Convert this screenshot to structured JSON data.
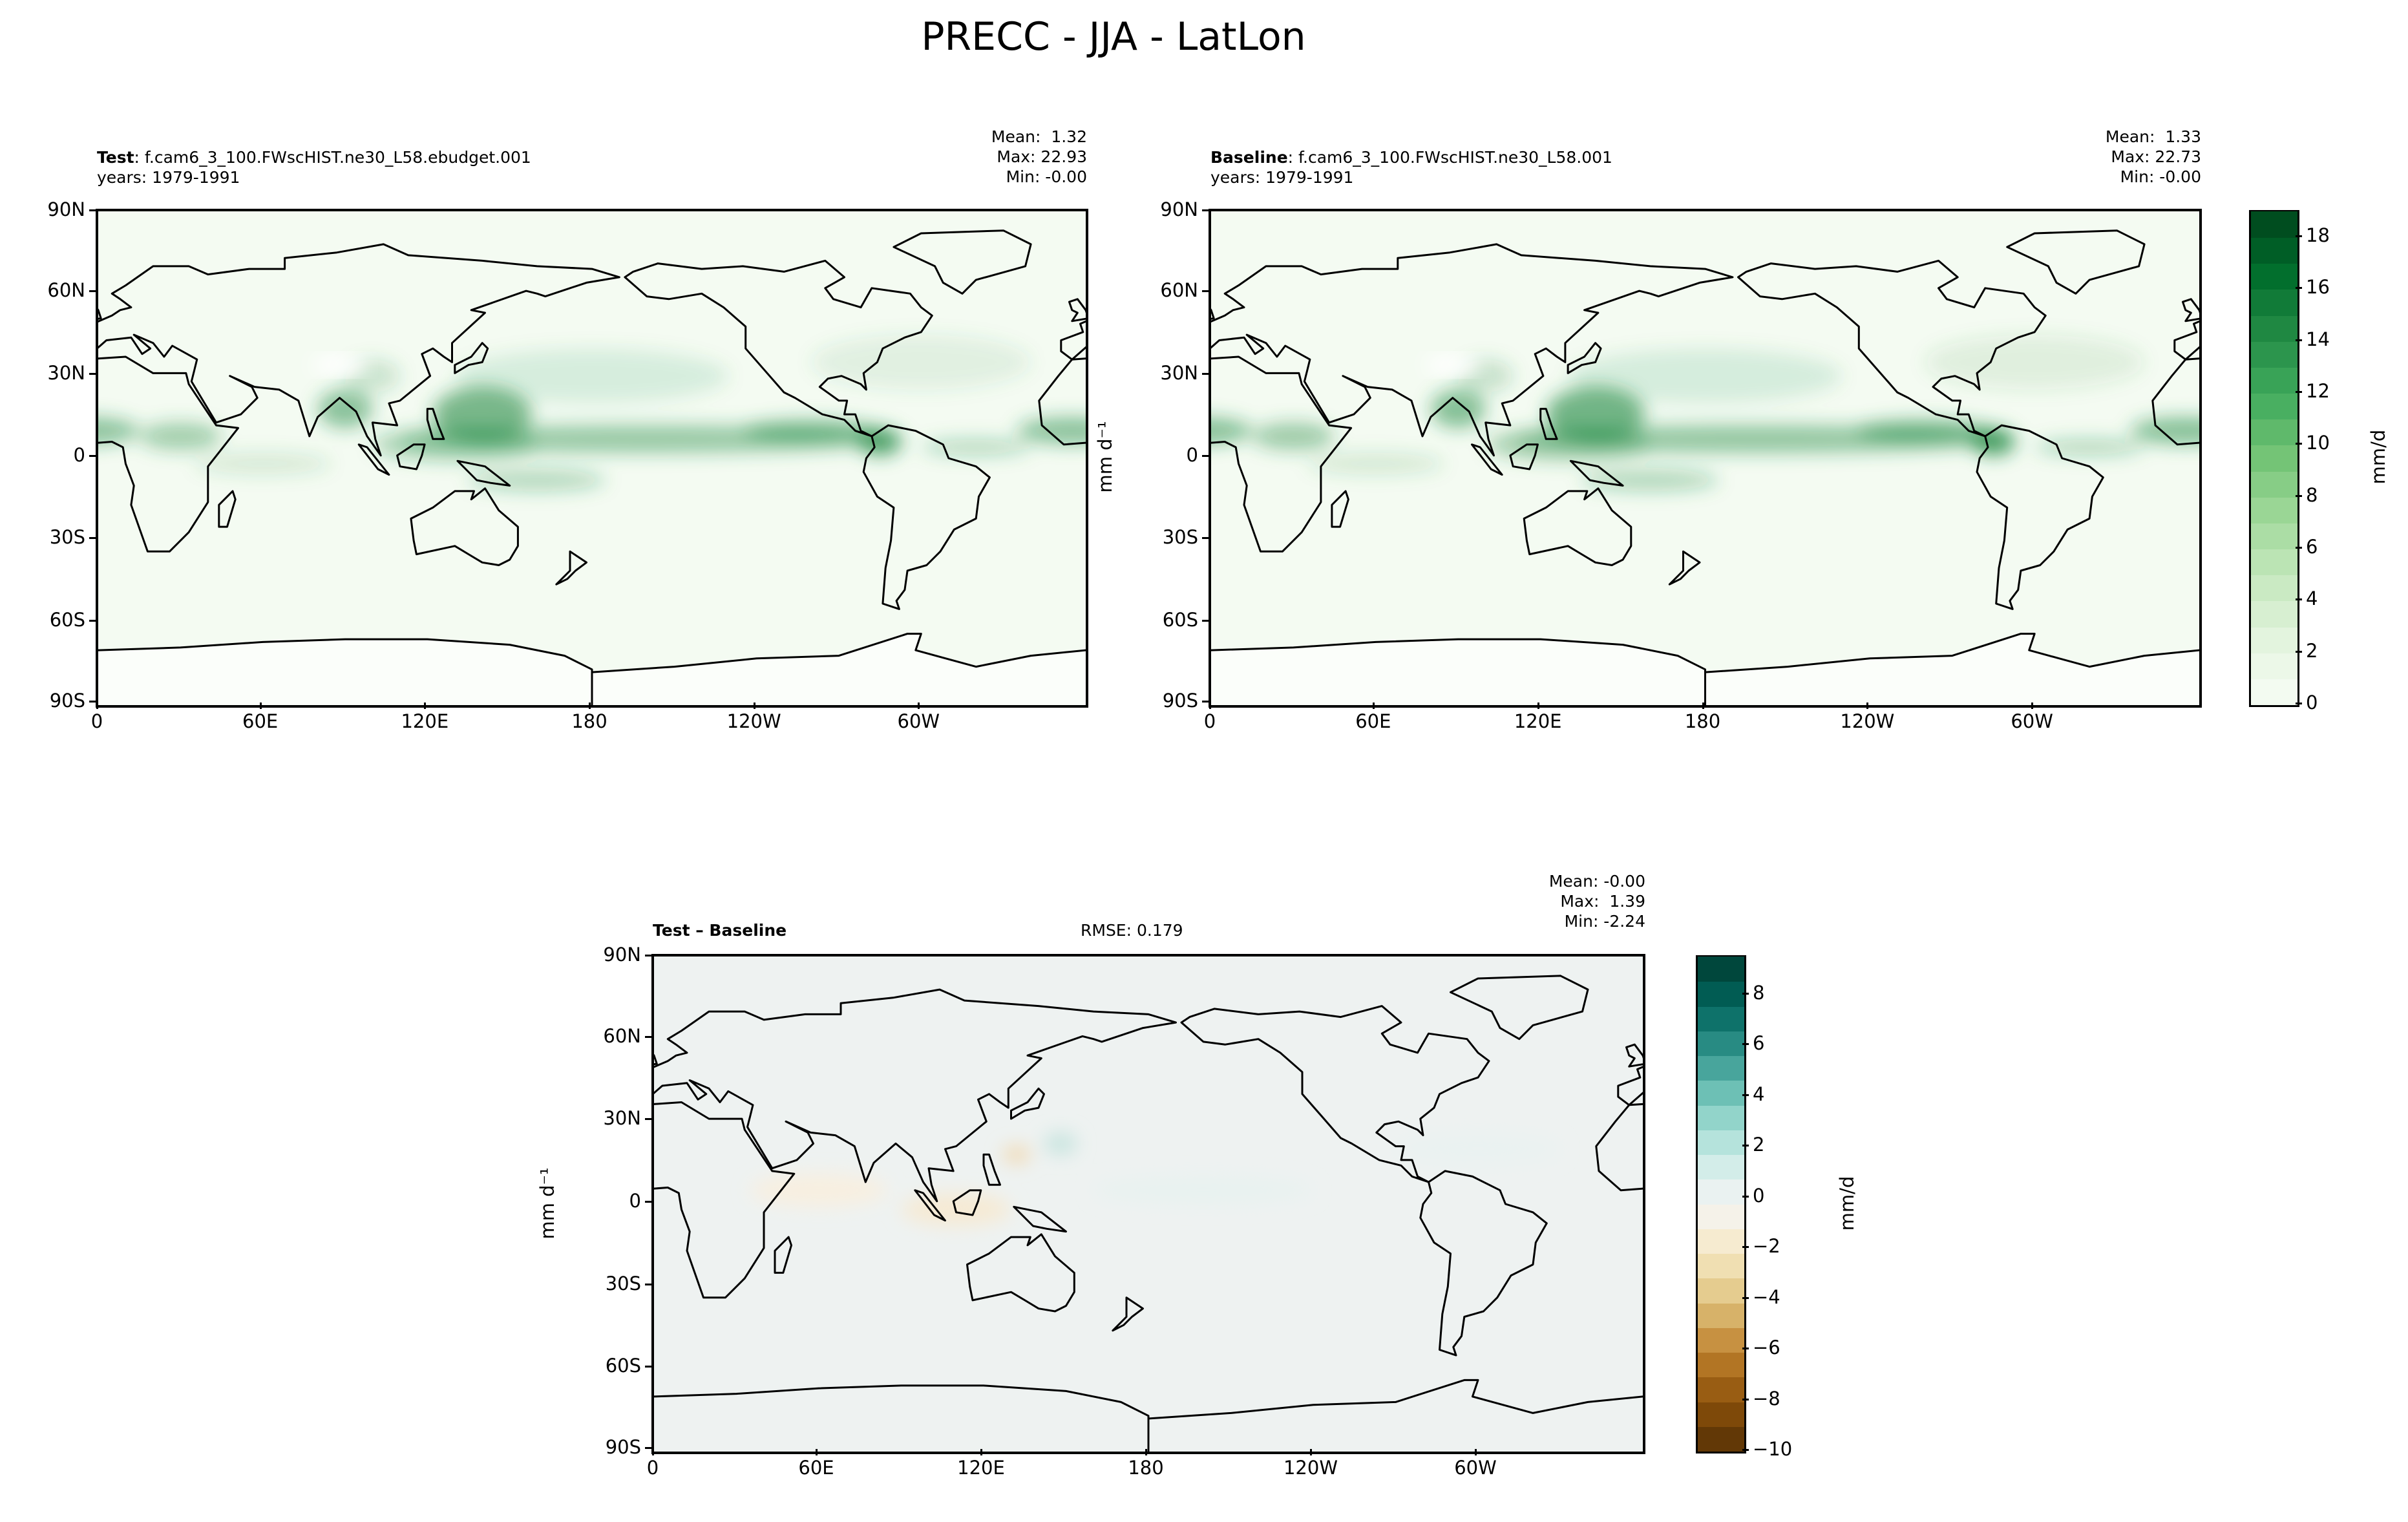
{
  "figure_title": "PRECC - JJA - LatLon",
  "chart_data": [
    {
      "type": "heatmap",
      "panel": "test",
      "label_bold": "Test",
      "label_rest": ": f.cam6_3_100.FWscHIST.ne30_L58.ebudget.001",
      "years": "years: 1979-1991",
      "stats": {
        "mean": "Mean:  1.32",
        "max": "Max: 22.93",
        "min": "Min: -0.00"
      },
      "units": "mm d⁻¹",
      "xticks": [
        "0",
        "60E",
        "120E",
        "180",
        "120W",
        "60W"
      ],
      "yticks": [
        "90N",
        "60N",
        "30N",
        "0",
        "30S",
        "60S",
        "90S"
      ],
      "xlim": [
        0,
        360
      ],
      "ylim": [
        -90,
        90
      ],
      "colormap": "Greens"
    },
    {
      "type": "heatmap",
      "panel": "baseline",
      "label_bold": "Baseline",
      "label_rest": ": f.cam6_3_100.FWscHIST.ne30_L58.001",
      "years": "years: 1979-1991",
      "stats": {
        "mean": "Mean:  1.33",
        "max": "Max: 22.73",
        "min": "Min: -0.00"
      },
      "units": "mm d⁻¹",
      "xticks": [
        "0",
        "60E",
        "120E",
        "180",
        "120W",
        "60W"
      ],
      "yticks": [
        "90N",
        "60N",
        "30N",
        "0",
        "30S",
        "60S",
        "90S"
      ],
      "xlim": [
        0,
        360
      ],
      "ylim": [
        -90,
        90
      ],
      "colormap": "Greens",
      "colorbar": {
        "label": "mm/d",
        "range": [
          0,
          19
        ],
        "ticks": [
          "0",
          "2",
          "4",
          "6",
          "8",
          "10",
          "12",
          "14",
          "16",
          "18"
        ],
        "tick_values": [
          0,
          2,
          4,
          6,
          8,
          10,
          12,
          14,
          16,
          18
        ]
      }
    },
    {
      "type": "heatmap",
      "panel": "difference",
      "label_bold": "Test – Baseline",
      "rmse": "RMSE: 0.179",
      "stats": {
        "mean": "Mean: -0.00",
        "max": "Max:  1.39",
        "min": "Min: -2.24"
      },
      "units": "mm d⁻¹",
      "xticks": [
        "0",
        "60E",
        "120E",
        "180",
        "120W",
        "60W"
      ],
      "yticks": [
        "90N",
        "60N",
        "30N",
        "0",
        "30S",
        "60S",
        "90S"
      ],
      "xlim": [
        0,
        360
      ],
      "ylim": [
        -90,
        90
      ],
      "colormap": "BrBG",
      "colorbar": {
        "label": "mm/d",
        "range": [
          -10,
          9.5
        ],
        "ticks": [
          "−10",
          "−8",
          "−6",
          "−4",
          "−2",
          "0",
          "2",
          "4",
          "6",
          "8"
        ],
        "tick_values": [
          -10,
          -8,
          -6,
          -4,
          -2,
          0,
          2,
          4,
          6,
          8
        ]
      }
    }
  ]
}
